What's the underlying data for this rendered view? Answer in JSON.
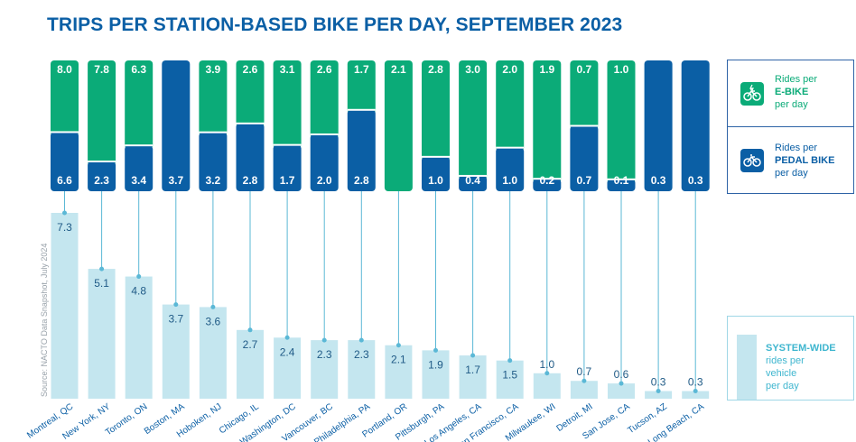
{
  "title": "TRIPS PER STATION-BASED BIKE PER DAY, SEPTEMBER 2023",
  "source": "Source: NACTO Data Snapshot, July 2024",
  "legend": {
    "ebike": {
      "line1": "Rides per",
      "line2": "E-BIKE",
      "line3": "per day"
    },
    "pedal": {
      "line1": "Rides per",
      "line2": "PEDAL BIKE",
      "line3": "per day"
    },
    "system": {
      "line1": "SYSTEM-WIDE",
      "line2": "rides per",
      "line3": "vehicle",
      "line4": "per day"
    }
  },
  "colors": {
    "title": "#0b5fa5",
    "ebike": "#0bab78",
    "pedal": "#0b5fa5",
    "system": "#c4e6ef",
    "connector": "#5bb8d6",
    "value_text": "#1f5a86"
  },
  "chart_data": [
    {
      "type": "bar",
      "series": [
        {
          "name": "Rides per E-BIKE per day",
          "values": [
            8.0,
            7.8,
            6.3,
            null,
            3.9,
            2.6,
            3.1,
            2.6,
            1.7,
            2.1,
            2.8,
            3.0,
            2.0,
            1.9,
            0.7,
            1.0,
            null,
            null
          ]
        },
        {
          "name": "Rides per PEDAL BIKE per day",
          "values": [
            6.6,
            2.3,
            3.4,
            3.7,
            3.2,
            2.8,
            1.7,
            2.0,
            2.8,
            null,
            1.0,
            0.4,
            1.0,
            0.2,
            0.7,
            0.1,
            0.3,
            0.3
          ]
        }
      ],
      "categories": [
        "Montreal, QC",
        "New York, NY",
        "Toronto, ON",
        "Boston, MA",
        "Hoboken, NJ",
        "Chicago, IL",
        "Washington, DC",
        "Vancouver, BC",
        "Philadelphia, PA",
        "Portland, OR",
        "Pittsburgh, PA",
        "Los Angeles, CA",
        "San Francisco, CA",
        "Milwaukee, WI",
        "Detroit, MI",
        "San Jose, CA",
        "Tucson, AZ",
        "Long Beach, CA"
      ]
    },
    {
      "type": "bar",
      "series": [
        {
          "name": "SYSTEM-WIDE rides per vehicle per day",
          "values": [
            7.3,
            5.1,
            4.8,
            3.7,
            3.6,
            2.7,
            2.4,
            2.3,
            2.3,
            2.1,
            1.9,
            1.7,
            1.5,
            1.0,
            0.7,
            0.6,
            0.3,
            0.3
          ]
        }
      ],
      "categories": [
        "Montreal, QC",
        "New York, NY",
        "Toronto, ON",
        "Boston, MA",
        "Hoboken, NJ",
        "Chicago, IL",
        "Washington, DC",
        "Vancouver, BC",
        "Philadelphia, PA",
        "Portland, OR",
        "Pittsburgh, PA",
        "Los Angeles, CA",
        "San Francisco, CA",
        "Milwaukee, WI",
        "Detroit, MI",
        "San Jose, CA",
        "Tucson, AZ",
        "Long Beach, CA"
      ],
      "ylim": [
        0,
        7.3
      ]
    }
  ]
}
